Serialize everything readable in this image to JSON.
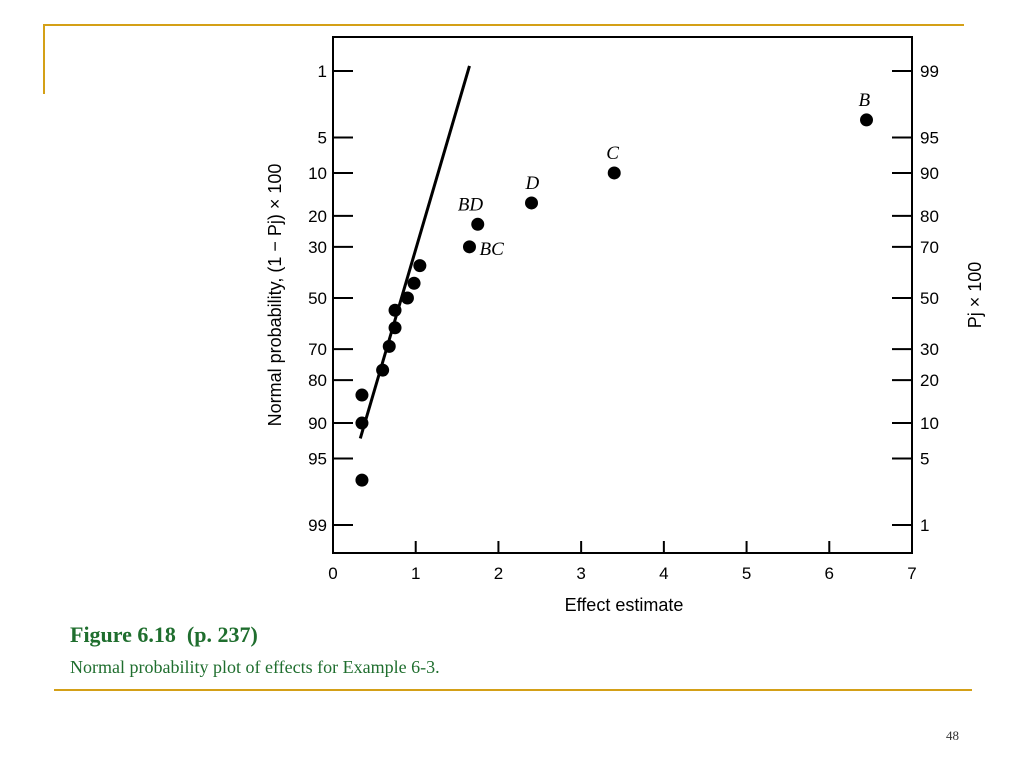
{
  "colors": {
    "accent": "#d4a017",
    "caption": "#1f6e2e",
    "ink": "#000000"
  },
  "caption": {
    "title": "Figure 6.18  (p. 237)",
    "subtitle": "Normal probability plot of effects for Example 6-3."
  },
  "slide_number": "48",
  "chart_data": {
    "type": "scatter",
    "xlabel": "Effect estimate",
    "ylabel": "Normal probability, (1 − Pj) × 100",
    "ylabel_right": "Pj × 100",
    "xlim": [
      0,
      7
    ],
    "x_ticks": [
      0,
      1,
      2,
      3,
      4,
      5,
      6,
      7
    ],
    "y_scale": "normal-probability",
    "y_ticks_left": [
      "1",
      "5",
      "10",
      "20",
      "30",
      "50",
      "70",
      "80",
      "90",
      "95",
      "99"
    ],
    "y_ticks_right": [
      "99",
      "95",
      "90",
      "80",
      "70",
      "50",
      "30",
      "20",
      "10",
      "5",
      "1"
    ],
    "grid": false,
    "points": [
      {
        "x": 0.35,
        "y": 96.9,
        "label": ""
      },
      {
        "x": 0.35,
        "y": 90.0,
        "label": ""
      },
      {
        "x": 0.35,
        "y": 84.0,
        "label": ""
      },
      {
        "x": 0.6,
        "y": 77.0,
        "label": ""
      },
      {
        "x": 0.68,
        "y": 69.0,
        "label": ""
      },
      {
        "x": 0.75,
        "y": 62.0,
        "label": ""
      },
      {
        "x": 0.75,
        "y": 55.0,
        "label": ""
      },
      {
        "x": 0.9,
        "y": 50.0,
        "label": ""
      },
      {
        "x": 0.98,
        "y": 44.0,
        "label": ""
      },
      {
        "x": 1.05,
        "y": 37.0,
        "label": ""
      },
      {
        "x": 1.65,
        "y": 30.0,
        "label": "BC"
      },
      {
        "x": 1.75,
        "y": 22.5,
        "label": "BD"
      },
      {
        "x": 2.4,
        "y": 16.5,
        "label": "D"
      },
      {
        "x": 3.4,
        "y": 10.0,
        "label": "C"
      },
      {
        "x": 6.45,
        "y": 3.4,
        "label": "B"
      }
    ],
    "reference_line": {
      "from": {
        "x": 0.33,
        "y": 92.5
      },
      "to": {
        "x": 1.65,
        "y": 0.87
      }
    }
  }
}
